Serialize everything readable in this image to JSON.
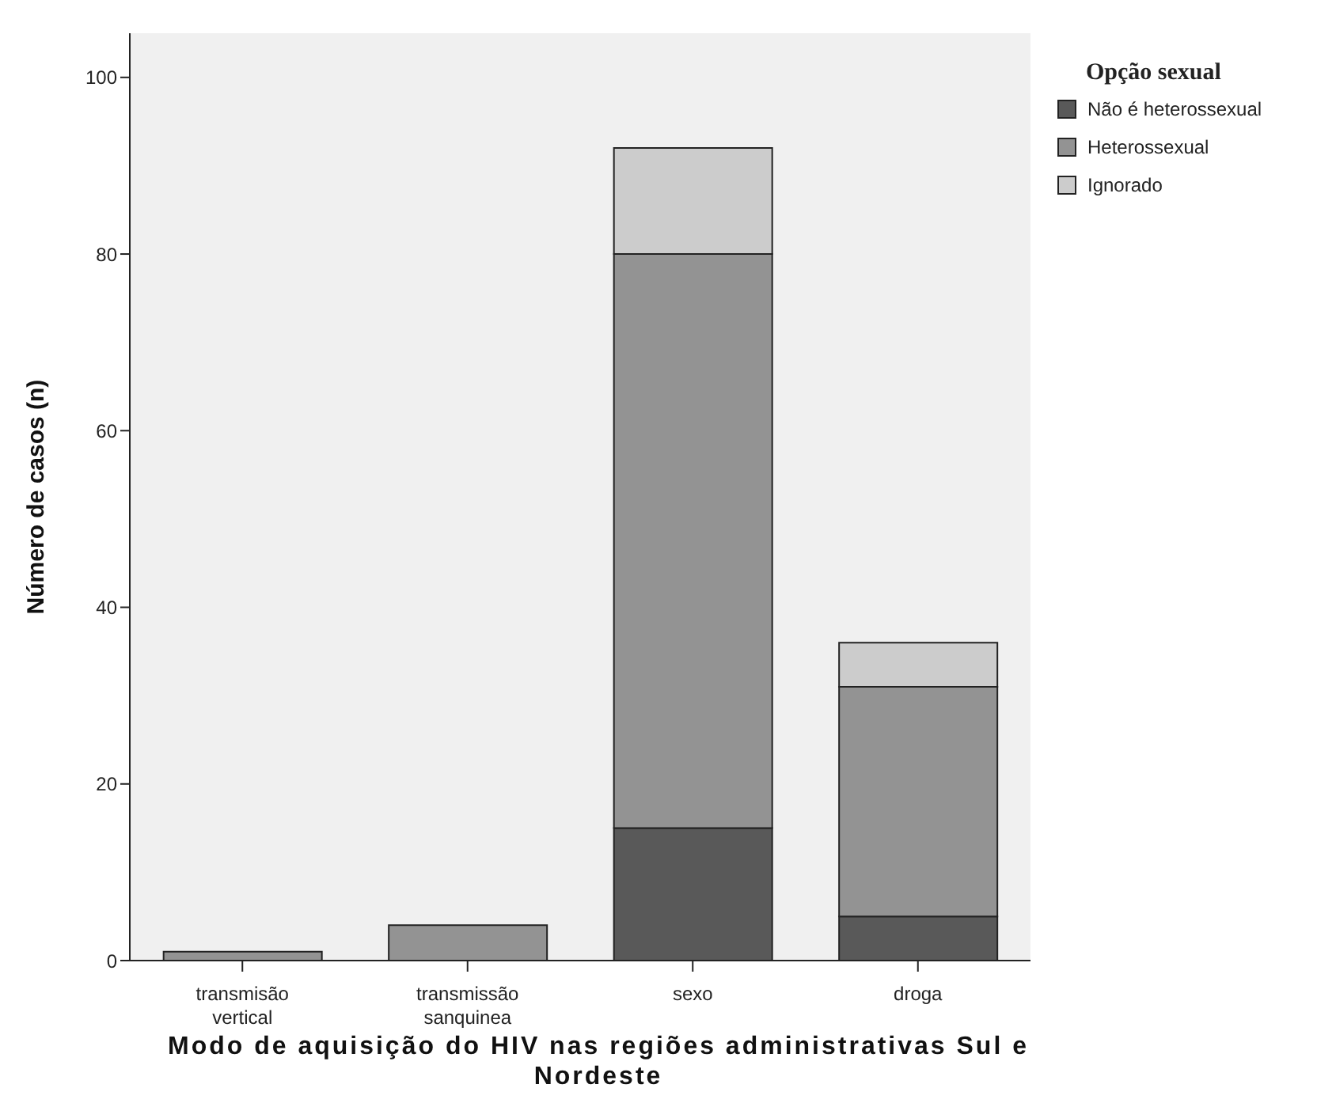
{
  "chart_data": {
    "type": "bar",
    "stacked": true,
    "xlabel": "Modo de aquisição do HIV nas regiões administrativas Sul e Nordeste",
    "ylabel": "Número de casos (n)",
    "legend_title": "Opção sexual",
    "legend": "top right",
    "grid": false,
    "categories": [
      "transmisão vertical",
      "transmissão sanquinea",
      "sexo",
      "droga"
    ],
    "series": [
      {
        "name": "Não é heterossexual",
        "color": "#595959",
        "values": [
          0,
          0,
          15,
          5
        ]
      },
      {
        "name": "Heterossexual",
        "color": "#939393",
        "values": [
          1,
          4,
          65,
          26
        ]
      },
      {
        "name": "Ignorado",
        "color": "#cccccc",
        "values": [
          0,
          0,
          12,
          5
        ]
      }
    ],
    "ylim": [
      0,
      105
    ],
    "yticks": [
      0,
      20,
      40,
      60,
      80,
      100
    ]
  }
}
